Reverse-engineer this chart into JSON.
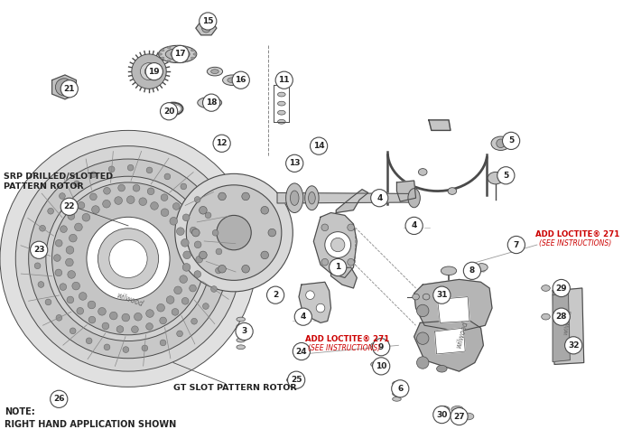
{
  "background_color": "#ffffff",
  "line_color": "#4a4a4a",
  "light_gray": "#d0d0d0",
  "mid_gray": "#b0b0b0",
  "dark_gray": "#888888",
  "red_color": "#cc0000",
  "note_text": "NOTE:\nRIGHT HAND APPLICATION SHOWN",
  "label_srp": "SRP DRILLED/SLOTTED\nPATTERN ROTOR",
  "label_gt": "GT SLOT PATTERN ROTOR",
  "loctite_text1": "ADD LOCTITE",
  "loctite_reg": "®",
  "loctite_271": " 271",
  "loctite_see": "(SEE INSTRUCTIONS)",
  "circle_labels": [
    [
      1,
      390,
      298
    ],
    [
      2,
      318,
      330
    ],
    [
      3,
      282,
      372
    ],
    [
      4,
      350,
      355
    ],
    [
      4,
      438,
      218
    ],
    [
      4,
      478,
      250
    ],
    [
      5,
      590,
      152
    ],
    [
      5,
      584,
      192
    ],
    [
      6,
      462,
      438
    ],
    [
      7,
      596,
      272
    ],
    [
      8,
      545,
      302
    ],
    [
      9,
      440,
      390
    ],
    [
      10,
      440,
      412
    ],
    [
      11,
      328,
      82
    ],
    [
      12,
      256,
      155
    ],
    [
      13,
      340,
      178
    ],
    [
      14,
      368,
      158
    ],
    [
      15,
      240,
      14
    ],
    [
      16,
      278,
      82
    ],
    [
      17,
      208,
      52
    ],
    [
      18,
      244,
      108
    ],
    [
      19,
      178,
      72
    ],
    [
      20,
      195,
      118
    ],
    [
      21,
      80,
      92
    ],
    [
      22,
      80,
      228
    ],
    [
      23,
      45,
      278
    ],
    [
      24,
      348,
      395
    ],
    [
      25,
      342,
      428
    ],
    [
      26,
      68,
      450
    ],
    [
      27,
      530,
      470
    ],
    [
      28,
      648,
      355
    ],
    [
      29,
      648,
      322
    ],
    [
      30,
      510,
      468
    ],
    [
      31,
      510,
      330
    ],
    [
      32,
      662,
      388
    ]
  ]
}
